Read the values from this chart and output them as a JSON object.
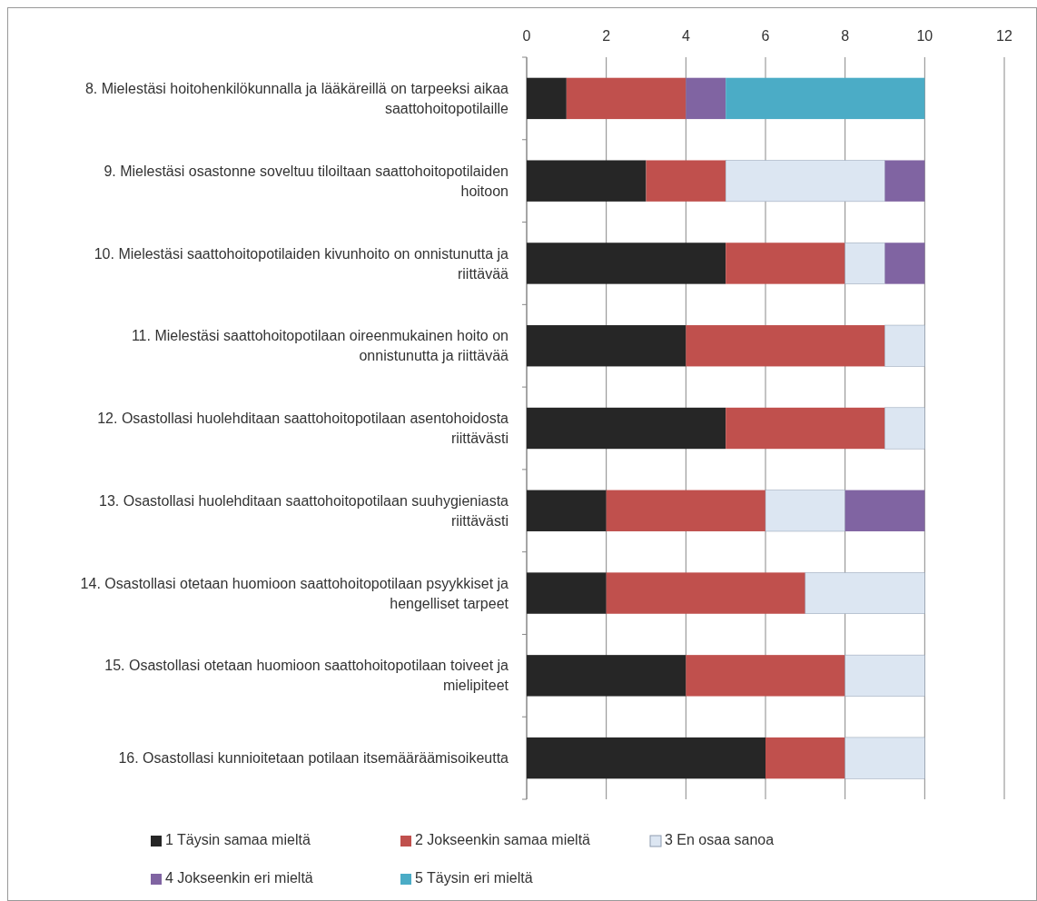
{
  "chart_data": {
    "type": "bar",
    "orientation": "horizontal",
    "stacked": true,
    "categories": [
      "8. Mielestäsi hoitohenkilökunnalla ja lääkäreillä on tarpeeksi aikaa saattohoitopotilaille",
      "9. Mielestäsi osastonne soveltuu tiloiltaan saattohoitopotilaiden hoitoon",
      "10. Mielestäsi saattohoitopotilaiden kivunhoito on onnistunutta ja riittävää",
      "11. Mielestäsi saattohoitopotilaan oireenmukainen hoito on onnistunutta ja riittävää",
      "12. Osastollasi huolehditaan saattohoitopotilaan asentohoidosta riittävästi",
      "13. Osastollasi huolehditaan saattohoitopotilaan suuhygieniasta riittävästi",
      "14. Osastollasi otetaan huomioon saattohoitopotilaan psyykkiset ja hengelliset tarpeet",
      "15. Osastollasi otetaan huomioon saattohoitopotilaan toiveet ja mielipiteet",
      "16. Osastollasi kunnioitetaan potilaan itsemääräämisoikeutta"
    ],
    "series": [
      {
        "name": "1 Täysin samaa mieltä",
        "color": "#262626",
        "values": [
          1,
          3,
          5,
          4,
          5,
          2,
          2,
          4,
          6
        ]
      },
      {
        "name": "2 Jokseenkin samaa mieltä",
        "color": "#c0504d",
        "values": [
          3,
          2,
          3,
          5,
          4,
          4,
          5,
          4,
          2
        ]
      },
      {
        "name": "3 En osaa sanoa",
        "color": "#dce6f2",
        "values": [
          0,
          4,
          1,
          1,
          1,
          2,
          3,
          2,
          2
        ]
      },
      {
        "name": "4 Jokseenkin eri mieltä",
        "color": "#8064a2",
        "values": [
          1,
          1,
          1,
          0,
          0,
          2,
          0,
          0,
          0
        ]
      },
      {
        "name": "5 Täysin eri mieltä",
        "color": "#4bacc6",
        "values": [
          5,
          0,
          0,
          0,
          0,
          0,
          0,
          0,
          0
        ]
      }
    ],
    "xlim": [
      0,
      12
    ],
    "xticks": [
      0,
      2,
      4,
      6,
      8,
      10,
      12
    ],
    "grid": "x",
    "legend": "bottom"
  }
}
